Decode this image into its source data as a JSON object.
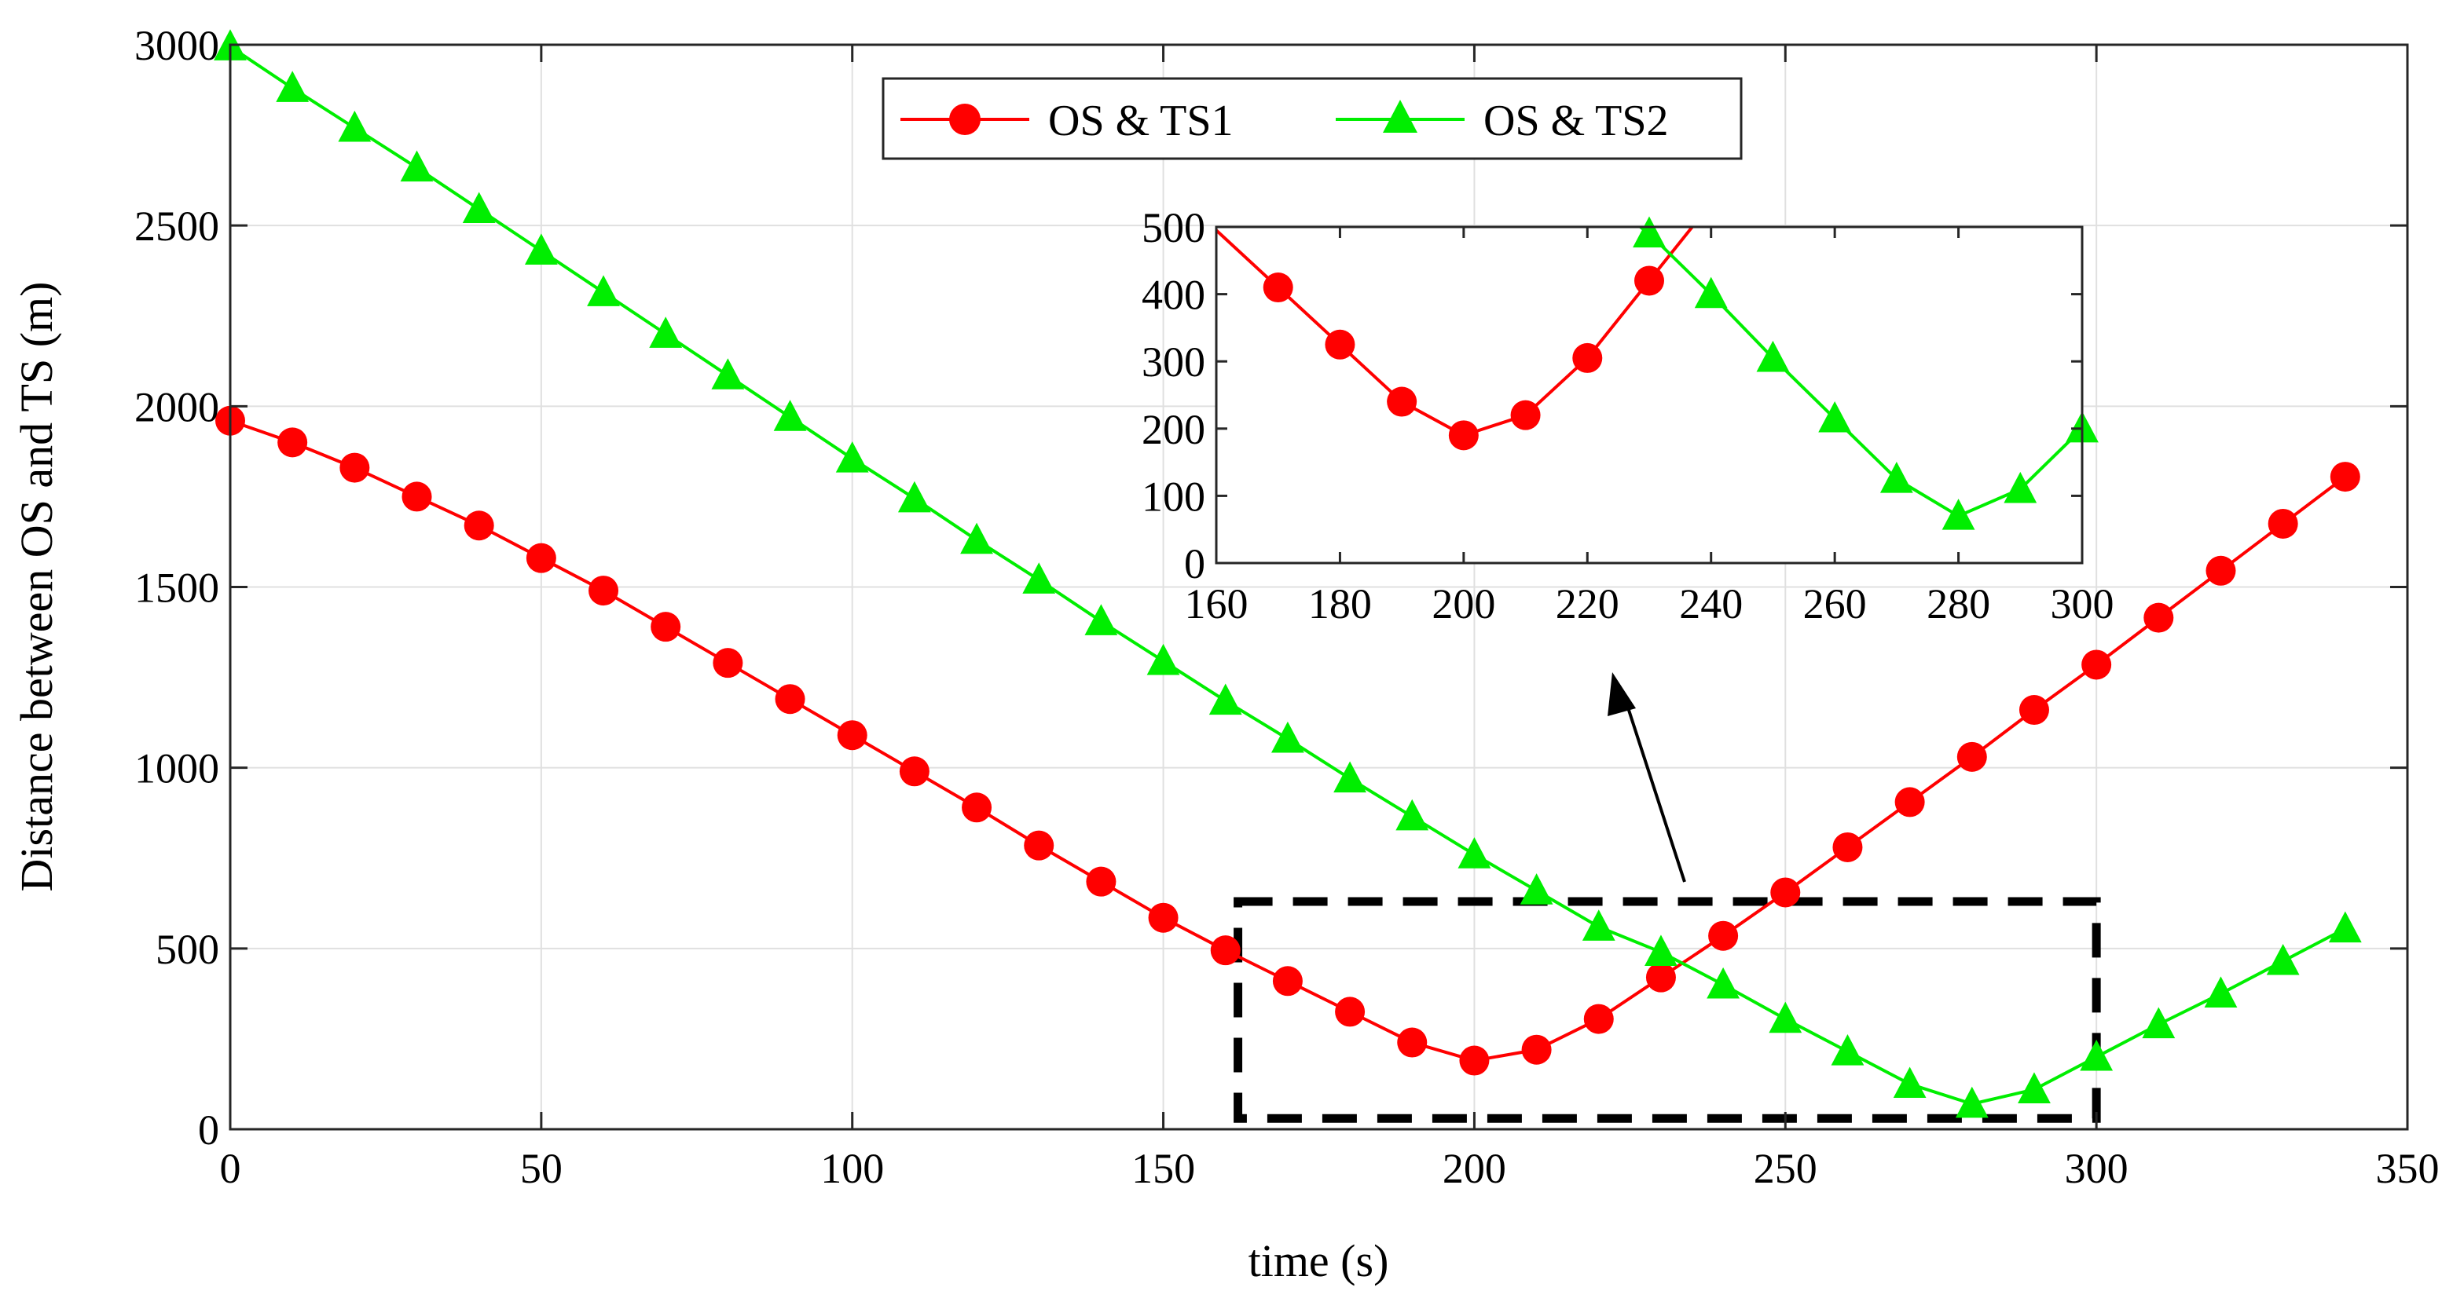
{
  "chart_data": {
    "type": "line",
    "xlabel": "time (s)",
    "ylabel": "Distance between OS and TS (m)",
    "xlim": [
      0,
      350
    ],
    "ylim": [
      0,
      3000
    ],
    "xticks": [
      0,
      50,
      100,
      150,
      200,
      250,
      300,
      350
    ],
    "yticks": [
      0,
      500,
      1000,
      1500,
      2000,
      2500,
      3000
    ],
    "grid": true,
    "legend_position": "top-center",
    "series": [
      {
        "name": "OS & TS1",
        "color": "#ff0000",
        "marker": "circle",
        "x": [
          0,
          10,
          20,
          30,
          40,
          50,
          60,
          70,
          80,
          90,
          100,
          110,
          120,
          130,
          140,
          150,
          160,
          170,
          180,
          190,
          200,
          210,
          220,
          230,
          240,
          250,
          260,
          270,
          280,
          290,
          300,
          310,
          320,
          330,
          340
        ],
        "values": [
          1960,
          1900,
          1830,
          1750,
          1670,
          1580,
          1490,
          1390,
          1290,
          1190,
          1090,
          990,
          890,
          785,
          685,
          585,
          495,
          410,
          325,
          240,
          190,
          220,
          305,
          420,
          535,
          655,
          780,
          905,
          1030,
          1160,
          1285,
          1415,
          1545,
          1675,
          1805
        ]
      },
      {
        "name": "OS & TS2",
        "color": "#00ee00",
        "marker": "triangle",
        "x": [
          0,
          10,
          20,
          30,
          40,
          50,
          60,
          70,
          80,
          90,
          100,
          110,
          120,
          130,
          140,
          150,
          160,
          170,
          180,
          190,
          200,
          210,
          220,
          230,
          240,
          250,
          260,
          270,
          280,
          290,
          300,
          310,
          320,
          330,
          340
        ],
        "values": [
          2995,
          2880,
          2770,
          2660,
          2545,
          2430,
          2315,
          2200,
          2085,
          1970,
          1855,
          1745,
          1630,
          1520,
          1405,
          1295,
          1185,
          1080,
          970,
          865,
          760,
          660,
          560,
          490,
          400,
          305,
          215,
          125,
          70,
          110,
          200,
          290,
          375,
          465,
          555
        ]
      }
    ],
    "inset": {
      "xlim": [
        160,
        300
      ],
      "ylim": [
        0,
        500
      ],
      "xticks": [
        160,
        180,
        200,
        220,
        240,
        260,
        280,
        300
      ],
      "yticks": [
        0,
        100,
        200,
        300,
        400,
        500
      ],
      "grid": false
    },
    "zoom_region": {
      "x": [
        162,
        300
      ],
      "y": [
        30,
        630
      ]
    }
  }
}
